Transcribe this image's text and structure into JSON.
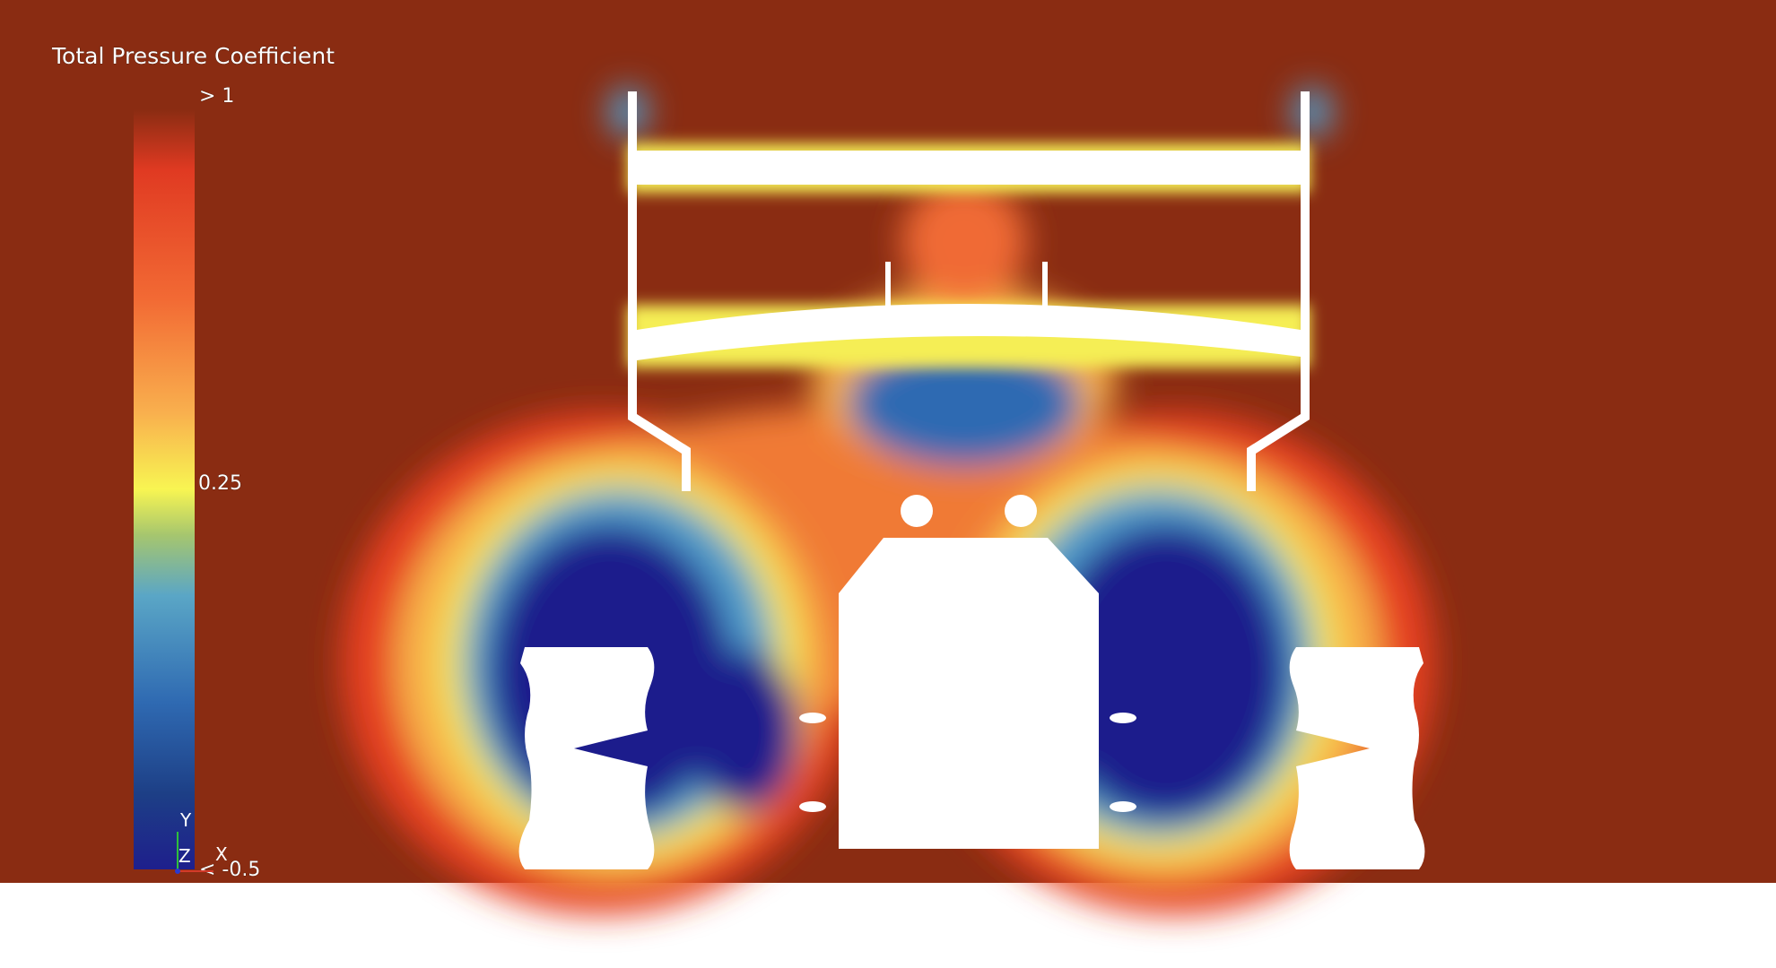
{
  "legend": {
    "title": "Total Pressure Coefficient",
    "labels": [
      "> 1",
      "0.25",
      "< -0.5"
    ]
  },
  "axes": {
    "labels": [
      "Y",
      "Z",
      "X"
    ]
  }
}
